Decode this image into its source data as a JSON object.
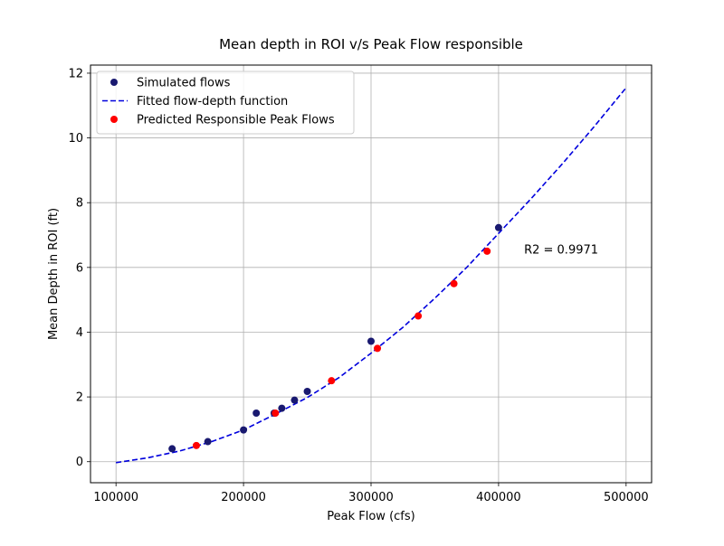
{
  "chart_data": {
    "type": "scatter",
    "title": "Mean depth in ROI v/s Peak Flow responsible",
    "xlabel": "Peak Flow (cfs)",
    "ylabel": "Mean Depth in ROI (ft)",
    "xlim": [
      80000,
      520000
    ],
    "ylim": [
      -0.65,
      12.25
    ],
    "xticks": [
      100000,
      200000,
      300000,
      400000,
      500000
    ],
    "yticks": [
      0,
      2,
      4,
      6,
      8,
      10,
      12
    ],
    "grid": true,
    "legend_position": "upper-left",
    "annotation": "R2 = 0.9971",
    "annotation_at": [
      420000,
      6.55
    ],
    "series": [
      {
        "name": "Simulated flows",
        "kind": "points",
        "color": "#191970",
        "x": [
          144000,
          172000,
          200000,
          210000,
          224000,
          230000,
          240000,
          250000,
          300000,
          400000
        ],
        "y": [
          0.4,
          0.62,
          0.98,
          1.5,
          1.5,
          1.65,
          1.9,
          2.17,
          3.72,
          7.23
        ]
      },
      {
        "name": "Fitted flow-depth function",
        "kind": "dashed-line",
        "color": "#0000dd",
        "x": [
          100000,
          125000,
          150000,
          175000,
          200000,
          225000,
          250000,
          275000,
          300000,
          325000,
          350000,
          375000,
          400000,
          425000,
          450000,
          475000,
          500000
        ],
        "y": [
          -0.03,
          0.12,
          0.33,
          0.62,
          0.98,
          1.47,
          1.98,
          2.6,
          3.35,
          4.15,
          5.05,
          6.0,
          7.05,
          8.1,
          9.2,
          10.35,
          11.55
        ]
      },
      {
        "name": "Predicted Responsible Peak Flows",
        "kind": "points",
        "color": "#ff0000",
        "x": [
          163000,
          225000,
          269000,
          305000,
          337000,
          365000,
          391000
        ],
        "y": [
          0.5,
          1.5,
          2.5,
          3.5,
          4.5,
          5.5,
          6.5
        ]
      }
    ]
  }
}
